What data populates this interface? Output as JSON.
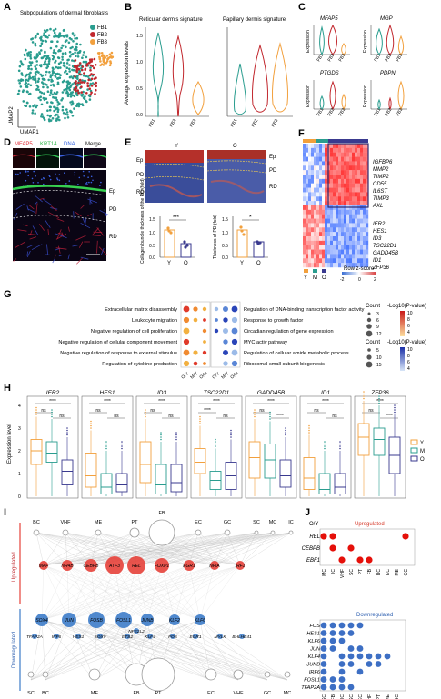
{
  "colors": {
    "fb1": "#2a9d8f",
    "fb2": "#c1272d",
    "fb3": "#f2a03d",
    "y": "#f2a03d",
    "m": "#2a9d8f",
    "o": "#3a3a8f",
    "up": "#e5413a",
    "down": "#3d7cc9"
  },
  "panel_labels": [
    "A",
    "B",
    "C",
    "D",
    "E",
    "F",
    "G",
    "H",
    "I",
    "J"
  ],
  "A": {
    "title": "Subpopulations of dermal fibroblasts",
    "xlabel": "UMAP1",
    "ylabel": "UMAP2",
    "legend": [
      "FB1",
      "FB2",
      "FB3"
    ]
  },
  "B": {
    "ylabel": "Average expression levels",
    "titles": [
      "Reticular dermis signature",
      "Papillary dermis signature"
    ],
    "ticks": [
      "1.5",
      "1.0",
      "0.5",
      "0.0"
    ],
    "groups": [
      "FB1",
      "FB2",
      "FB3"
    ]
  },
  "C": {
    "genes": [
      "MFAP5",
      "MGP",
      "PTGDS",
      "PDPN"
    ],
    "ylabel": "Expression",
    "groups": [
      "FB1",
      "FB2",
      "FB3"
    ]
  },
  "D": {
    "stains": [
      "MFAP5",
      "KRT14",
      "DNA",
      "Merge"
    ],
    "layers": [
      "Ep",
      "PD",
      "RD"
    ]
  },
  "E": {
    "groups": [
      "Y",
      "O"
    ],
    "layers": [
      "Ep",
      "PD",
      "RD"
    ],
    "bar1": {
      "ylabel": "Collagen bundle thickness of the RD (fold)",
      "sig": "***",
      "ticks": [
        "1.5",
        "1.0",
        "0.5",
        "0.0"
      ],
      "x": [
        "Y",
        "O"
      ]
    },
    "bar2": {
      "ylabel": "Thickness of PD (fold)",
      "sig": "*",
      "ticks": [
        "1.5",
        "1.0",
        "0.5",
        "0.0"
      ],
      "x": [
        "Y",
        "O"
      ]
    }
  },
  "F": {
    "up_genes": [
      "IGFBP6",
      "MMP2",
      "TIMP2",
      "CD55",
      "IL6ST",
      "TIMP3",
      "AXL"
    ],
    "down_genes": [
      "IER2",
      "HES1",
      "ID3",
      "TSC22D1",
      "GADD45B",
      "ID1",
      "ZFP36"
    ],
    "legend_title": "Row z-score",
    "legend_ticks": [
      "-2",
      "0",
      "2"
    ],
    "groups": [
      "Y",
      "M",
      "O"
    ]
  },
  "G": {
    "left_terms": [
      "Extracellular matrix disassembly",
      "Leukocyte migration",
      "Negative regulation of cell proliferation",
      "Negative regulation of cellular component movement",
      "Negative regulation of response to external stimulus",
      "Regulation of cytokine production"
    ],
    "right_terms": [
      "Regulation of DNA-binding transcription factor activity",
      "Response to growth factor",
      "Circadian regulation of gene expression",
      "MYC activ pathway",
      "Regulation of cellular amide metabolic process",
      "Ribosomal small subunit biogenesis"
    ],
    "x": [
      "O/Y",
      "M/Y",
      "O/M"
    ],
    "count_title": "Count",
    "count_a": [
      "3",
      "6",
      "9",
      "12"
    ],
    "count_b": [
      "5",
      "10",
      "15"
    ],
    "p_title": "-Log10(P-value)",
    "p_red": [
      "10",
      "8",
      "6",
      "4"
    ],
    "p_blue": [
      "10",
      "8",
      "6",
      "4"
    ]
  },
  "H": {
    "genes": [
      "IER2",
      "HES1",
      "ID3",
      "TSC22D1",
      "GADD45B",
      "ID1",
      "ZFP36"
    ],
    "ylabel": "Expression level",
    "ticks": [
      "4",
      "3",
      "2",
      "1",
      "0"
    ],
    "legend": [
      "Y",
      "M",
      "O"
    ],
    "sig_top": "****",
    "sig_a": "ns",
    "sig_b": "****"
  },
  "I": {
    "top_cells": [
      "BC",
      "VHF",
      "ME",
      "PT",
      "FB",
      "EC",
      "GC",
      "SC",
      "MC",
      "IC"
    ],
    "up_tfs": [
      "MAF",
      "NR4B",
      "CEBPB",
      "ATF3",
      "REL",
      "FOXP1",
      "EGR1",
      "NFIA",
      "IRF1"
    ],
    "down_tfs_row1": [
      "SOX4",
      "JUN",
      "FOSB",
      "FOSL1",
      "JUNB",
      "KLF2",
      "KLF6"
    ],
    "down_tfs_row2": [
      "TFAP2A",
      "IRF6",
      "HES1",
      "SOX9",
      "ETS2",
      "KLF4",
      "FOS",
      "EGR1",
      "MYLK",
      "BHLHE41",
      "NFE2L2"
    ],
    "bottom_cells": [
      "SC",
      "BC",
      "ME",
      "FB",
      "PT",
      "EC",
      "VHF",
      "GC",
      "MC"
    ],
    "up_label": "Upregulated",
    "down_label": "Downregulated"
  },
  "J": {
    "header": "O/Y",
    "up_label": "Upregulated",
    "down_label": "Downregulated",
    "up_genes": [
      "REL",
      "CEBPB",
      "EBF1"
    ],
    "up_cells": [
      "MC",
      "IC",
      "VHF",
      "SC",
      "PT",
      "FB",
      "BC",
      "EC",
      "ME",
      "GC"
    ],
    "down_genes": [
      "FOS",
      "HES1",
      "KLF6",
      "JUN",
      "KLF4",
      "JUNB",
      "IRF6",
      "FOSL1",
      "TFAP2A"
    ],
    "down_cells": [
      "SC",
      "FB",
      "IC",
      "SC",
      "EC",
      "VHF",
      "PT",
      "ME",
      "GC"
    ]
  }
}
